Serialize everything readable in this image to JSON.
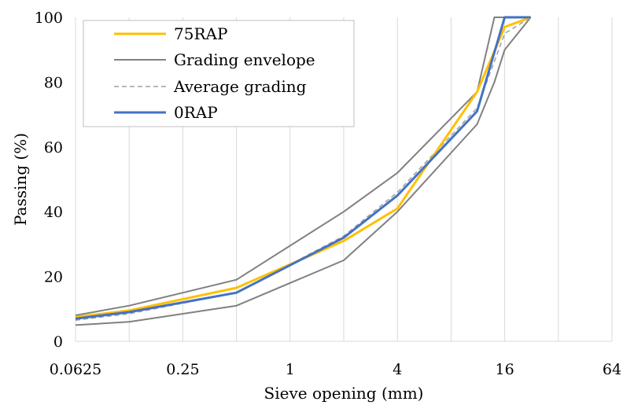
{
  "chart_data": {
    "type": "line",
    "title": "",
    "xlabel": "Sieve opening (mm)",
    "ylabel": "Passing (%)",
    "x_scale": "log2",
    "xlim": [
      0.0625,
      64
    ],
    "ylim": [
      0,
      100
    ],
    "x_ticks": [
      0.0625,
      0.25,
      1,
      4,
      16,
      64
    ],
    "x_tick_labels": [
      "0.0625",
      "0.25",
      "1",
      "4",
      "16",
      "64"
    ],
    "x_minor_gridlines": [
      0.125,
      0.5,
      2,
      8,
      32
    ],
    "y_ticks": [
      0,
      20,
      40,
      60,
      80,
      100
    ],
    "y_tick_labels": [
      "0",
      "20",
      "40",
      "60",
      "80",
      "100"
    ],
    "grid": "vertical",
    "legend": {
      "position": "top-left",
      "entries": [
        "75RAP",
        "Grading envelope",
        "Average grading",
        "0RAP"
      ]
    },
    "series": [
      {
        "name": "75RAP",
        "color": "#FFC000",
        "style": "solid",
        "x": [
          0.0625,
          0.125,
          0.5,
          2,
          4,
          11.2,
          16,
          22.4
        ],
        "y": [
          7.5,
          9.5,
          16.5,
          31,
          41,
          77,
          97,
          100
        ]
      },
      {
        "name": "Grading envelope",
        "color": "#808080",
        "style": "solid",
        "x": [
          0.0625,
          0.125,
          0.5,
          2,
          4,
          11.2,
          14,
          22.4
        ],
        "y": [
          8,
          11,
          19,
          40,
          52,
          77,
          100,
          100
        ]
      },
      {
        "name": "",
        "color": "#808080",
        "style": "solid",
        "x": [
          0.0625,
          0.125,
          0.5,
          2,
          4,
          11.2,
          14,
          16,
          22.4
        ],
        "y": [
          5,
          6,
          11,
          25,
          40,
          67,
          80,
          90,
          100
        ]
      },
      {
        "name": "Average grading",
        "color": "#A0A0A0",
        "style": "dashed",
        "x": [
          0.0625,
          0.125,
          0.5,
          2,
          4,
          11.2,
          16,
          22.4
        ],
        "y": [
          6.5,
          8.5,
          15,
          32.5,
          46,
          72,
          95,
          100
        ]
      },
      {
        "name": "0RAP",
        "color": "#4472C4",
        "style": "solid",
        "x": [
          0.0625,
          0.125,
          0.5,
          2,
          4,
          11.2,
          16,
          22.4
        ],
        "y": [
          7,
          9,
          15,
          32,
          45,
          71,
          100,
          100
        ]
      }
    ]
  }
}
